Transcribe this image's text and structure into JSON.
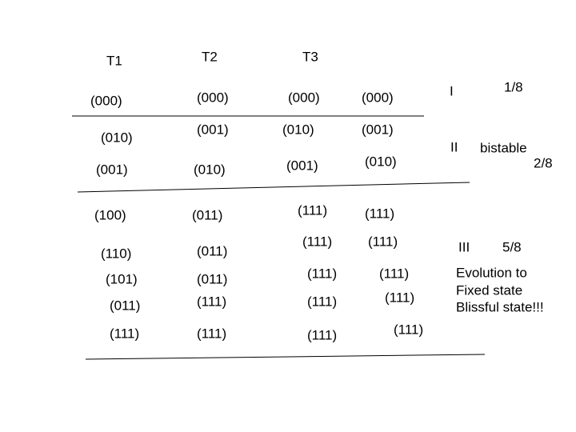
{
  "headers": [
    "T1",
    "T2",
    "T3"
  ],
  "columns": [
    [
      "(000)",
      "(010)",
      "(001)",
      "(100)",
      "(110)",
      "(101)",
      "(011)",
      "(111)"
    ],
    [
      "(000)",
      "(001)",
      "(010)",
      "(011)",
      "(011)",
      "(011)",
      "(111)",
      "(111)"
    ],
    [
      "(000)",
      "(010)",
      "(001)",
      "(111)",
      "(111)",
      "(111)",
      "(111)",
      "(111)"
    ],
    [
      "(000)",
      "(001)",
      "(010)",
      "(111)",
      "(111)",
      "(111)",
      "(111)",
      "(111)"
    ]
  ],
  "groups": [
    {
      "label": "I",
      "fraction": "1/8"
    },
    {
      "label": "II",
      "note": "bistable",
      "fraction": "2/8"
    },
    {
      "label": "III",
      "fraction": "5/8"
    }
  ],
  "description": [
    "Evolution to",
    "Fixed state",
    "Blissful state!!!"
  ]
}
